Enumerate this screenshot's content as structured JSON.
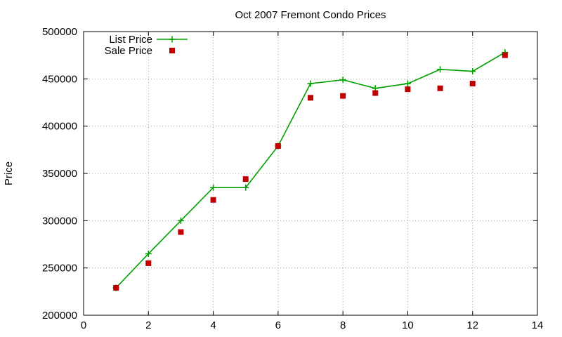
{
  "chart_data": {
    "type": "line",
    "title": "Oct 2007 Fremont Condo Prices",
    "xlabel": "",
    "ylabel": "Price",
    "xlim": [
      0,
      14
    ],
    "ylim": [
      200000,
      500000
    ],
    "x_ticks": [
      0,
      2,
      4,
      6,
      8,
      10,
      12,
      14
    ],
    "y_ticks": [
      200000,
      250000,
      300000,
      350000,
      400000,
      450000,
      500000
    ],
    "grid": true,
    "legend_position": "top-left",
    "series": [
      {
        "name": "List Price",
        "style": "line-points",
        "color": "#00a000",
        "marker": "plus",
        "x": [
          1,
          2,
          3,
          4,
          5,
          6,
          7,
          8,
          9,
          10,
          11,
          12,
          13
        ],
        "y": [
          229000,
          265000,
          300000,
          335000,
          335000,
          379000,
          445000,
          449000,
          440000,
          445000,
          460000,
          458000,
          478000
        ]
      },
      {
        "name": "Sale Price",
        "style": "points",
        "color": "#c00000",
        "marker": "square",
        "x": [
          1,
          2,
          3,
          4,
          5,
          6,
          7,
          8,
          9,
          10,
          11,
          12,
          13
        ],
        "y": [
          229000,
          255000,
          288000,
          322000,
          344000,
          379000,
          430000,
          432000,
          435000,
          439000,
          440000,
          445000,
          475000
        ]
      }
    ]
  }
}
